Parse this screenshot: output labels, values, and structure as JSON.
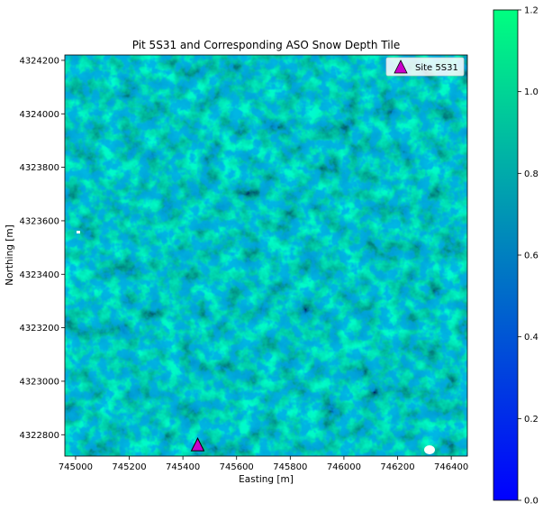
{
  "chart_data": {
    "type": "heatmap",
    "title": "Pit 5S31 and Corresponding ASO Snow Depth Tile",
    "xlabel": "Easting [m]",
    "ylabel": "Northing [m]",
    "xlim": [
      744960,
      746460
    ],
    "ylim": [
      4322720,
      4324220
    ],
    "x_ticks": [
      745000,
      745200,
      745400,
      745600,
      745800,
      746000,
      746200,
      746400
    ],
    "x_tick_labels": [
      "745000",
      "745200",
      "745400",
      "745600",
      "745800",
      "746000",
      "746200",
      "746400"
    ],
    "y_ticks": [
      4322800,
      4323000,
      4323200,
      4323400,
      4323600,
      4323800,
      4324000,
      4324200
    ],
    "y_tick_labels": [
      "4322800",
      "4323000",
      "4323200",
      "4323400",
      "4323600",
      "4323800",
      "4324000",
      "4324200"
    ],
    "colormap": "winter",
    "colormap_colors": [
      "#0000ff",
      "#00ff80"
    ],
    "color_range": [
      0.0,
      1.2
    ],
    "colorbar_ticks": [
      0.0,
      0.2,
      0.4,
      0.6,
      0.8,
      1.0,
      1.2
    ],
    "colorbar_tick_labels": [
      "0.0",
      "0.2",
      "0.4",
      "0.6",
      "0.8",
      "1.0",
      "1.2"
    ],
    "legend": {
      "label": "Site 5S31",
      "placement": "upper-right"
    },
    "site_marker": {
      "easting": 745455,
      "northing": 4322760,
      "shape": "triangle",
      "color": "#cc00cc"
    }
  }
}
